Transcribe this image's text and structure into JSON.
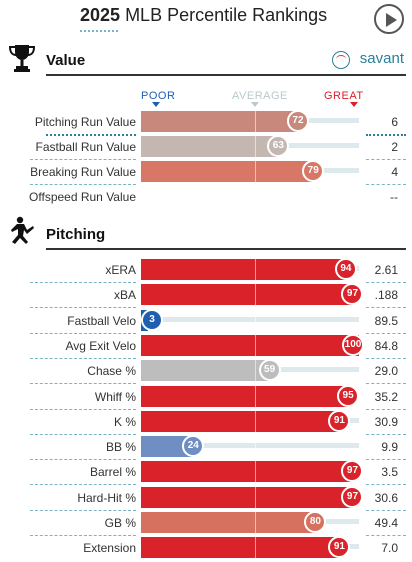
{
  "header": {
    "year": "2025",
    "title": "MLB Percentile Rankings"
  },
  "brand": {
    "name": "savant",
    "color": "#2a7f9a"
  },
  "scale": {
    "poor": "POOR",
    "average": "AVERAGE",
    "great": "GREAT"
  },
  "colors": {
    "poor": "#1f5fb0",
    "average": "#bdbdbd",
    "great": "#d9222a",
    "track": "#dde9ec",
    "accent": "#7ab3c6"
  },
  "value_section": {
    "title": "Value",
    "icon": "trophy-icon",
    "rows": [
      {
        "label": "Pitching Run Value",
        "percentile": 72,
        "value": "6",
        "color": "#c8887b",
        "bubble": "#c8887b"
      },
      {
        "label": "Fastball Run Value",
        "percentile": 63,
        "value": "2",
        "color": "#c4b7b1",
        "bubble": "#c4b7b1"
      },
      {
        "label": "Breaking Run Value",
        "percentile": 79,
        "value": "4",
        "color": "#d87766",
        "bubble": "#d87766"
      },
      {
        "label": "Offspeed Run Value",
        "percentile": null,
        "value": "--",
        "color": "",
        "bubble": ""
      }
    ]
  },
  "pitching_section": {
    "title": "Pitching",
    "icon": "pitcher-icon",
    "rows": [
      {
        "label": "xERA",
        "percentile": 94,
        "value": "2.61",
        "color": "#d9222a",
        "bubble": "#d9222a"
      },
      {
        "label": "xBA",
        "percentile": 97,
        "value": ".188",
        "color": "#d9222a",
        "bubble": "#d9222a"
      },
      {
        "label": "Fastball Velo",
        "percentile": 3,
        "value": "89.5",
        "color": "#1f5fb0",
        "bubble": "#1f5fb0"
      },
      {
        "label": "Avg Exit Velo",
        "percentile": 100,
        "value": "84.8",
        "color": "#d9222a",
        "bubble": "#d9222a"
      },
      {
        "label": "Chase %",
        "percentile": 59,
        "value": "29.0",
        "color": "#bdbdbd",
        "bubble": "#bdbdbd"
      },
      {
        "label": "Whiff %",
        "percentile": 95,
        "value": "35.2",
        "color": "#d9222a",
        "bubble": "#d9222a"
      },
      {
        "label": "K %",
        "percentile": 91,
        "value": "30.9",
        "color": "#d9222a",
        "bubble": "#d9222a"
      },
      {
        "label": "BB %",
        "percentile": 24,
        "value": "9.9",
        "color": "#6f8fc4",
        "bubble": "#6f8fc4"
      },
      {
        "label": "Barrel %",
        "percentile": 97,
        "value": "3.5",
        "color": "#d9222a",
        "bubble": "#d9222a"
      },
      {
        "label": "Hard-Hit %",
        "percentile": 97,
        "value": "30.6",
        "color": "#d9222a",
        "bubble": "#d9222a"
      },
      {
        "label": "GB %",
        "percentile": 80,
        "value": "49.4",
        "color": "#d6705f",
        "bubble": "#d6705f"
      },
      {
        "label": "Extension",
        "percentile": 91,
        "value": "7.0",
        "color": "#d9222a",
        "bubble": "#d9222a"
      }
    ]
  }
}
